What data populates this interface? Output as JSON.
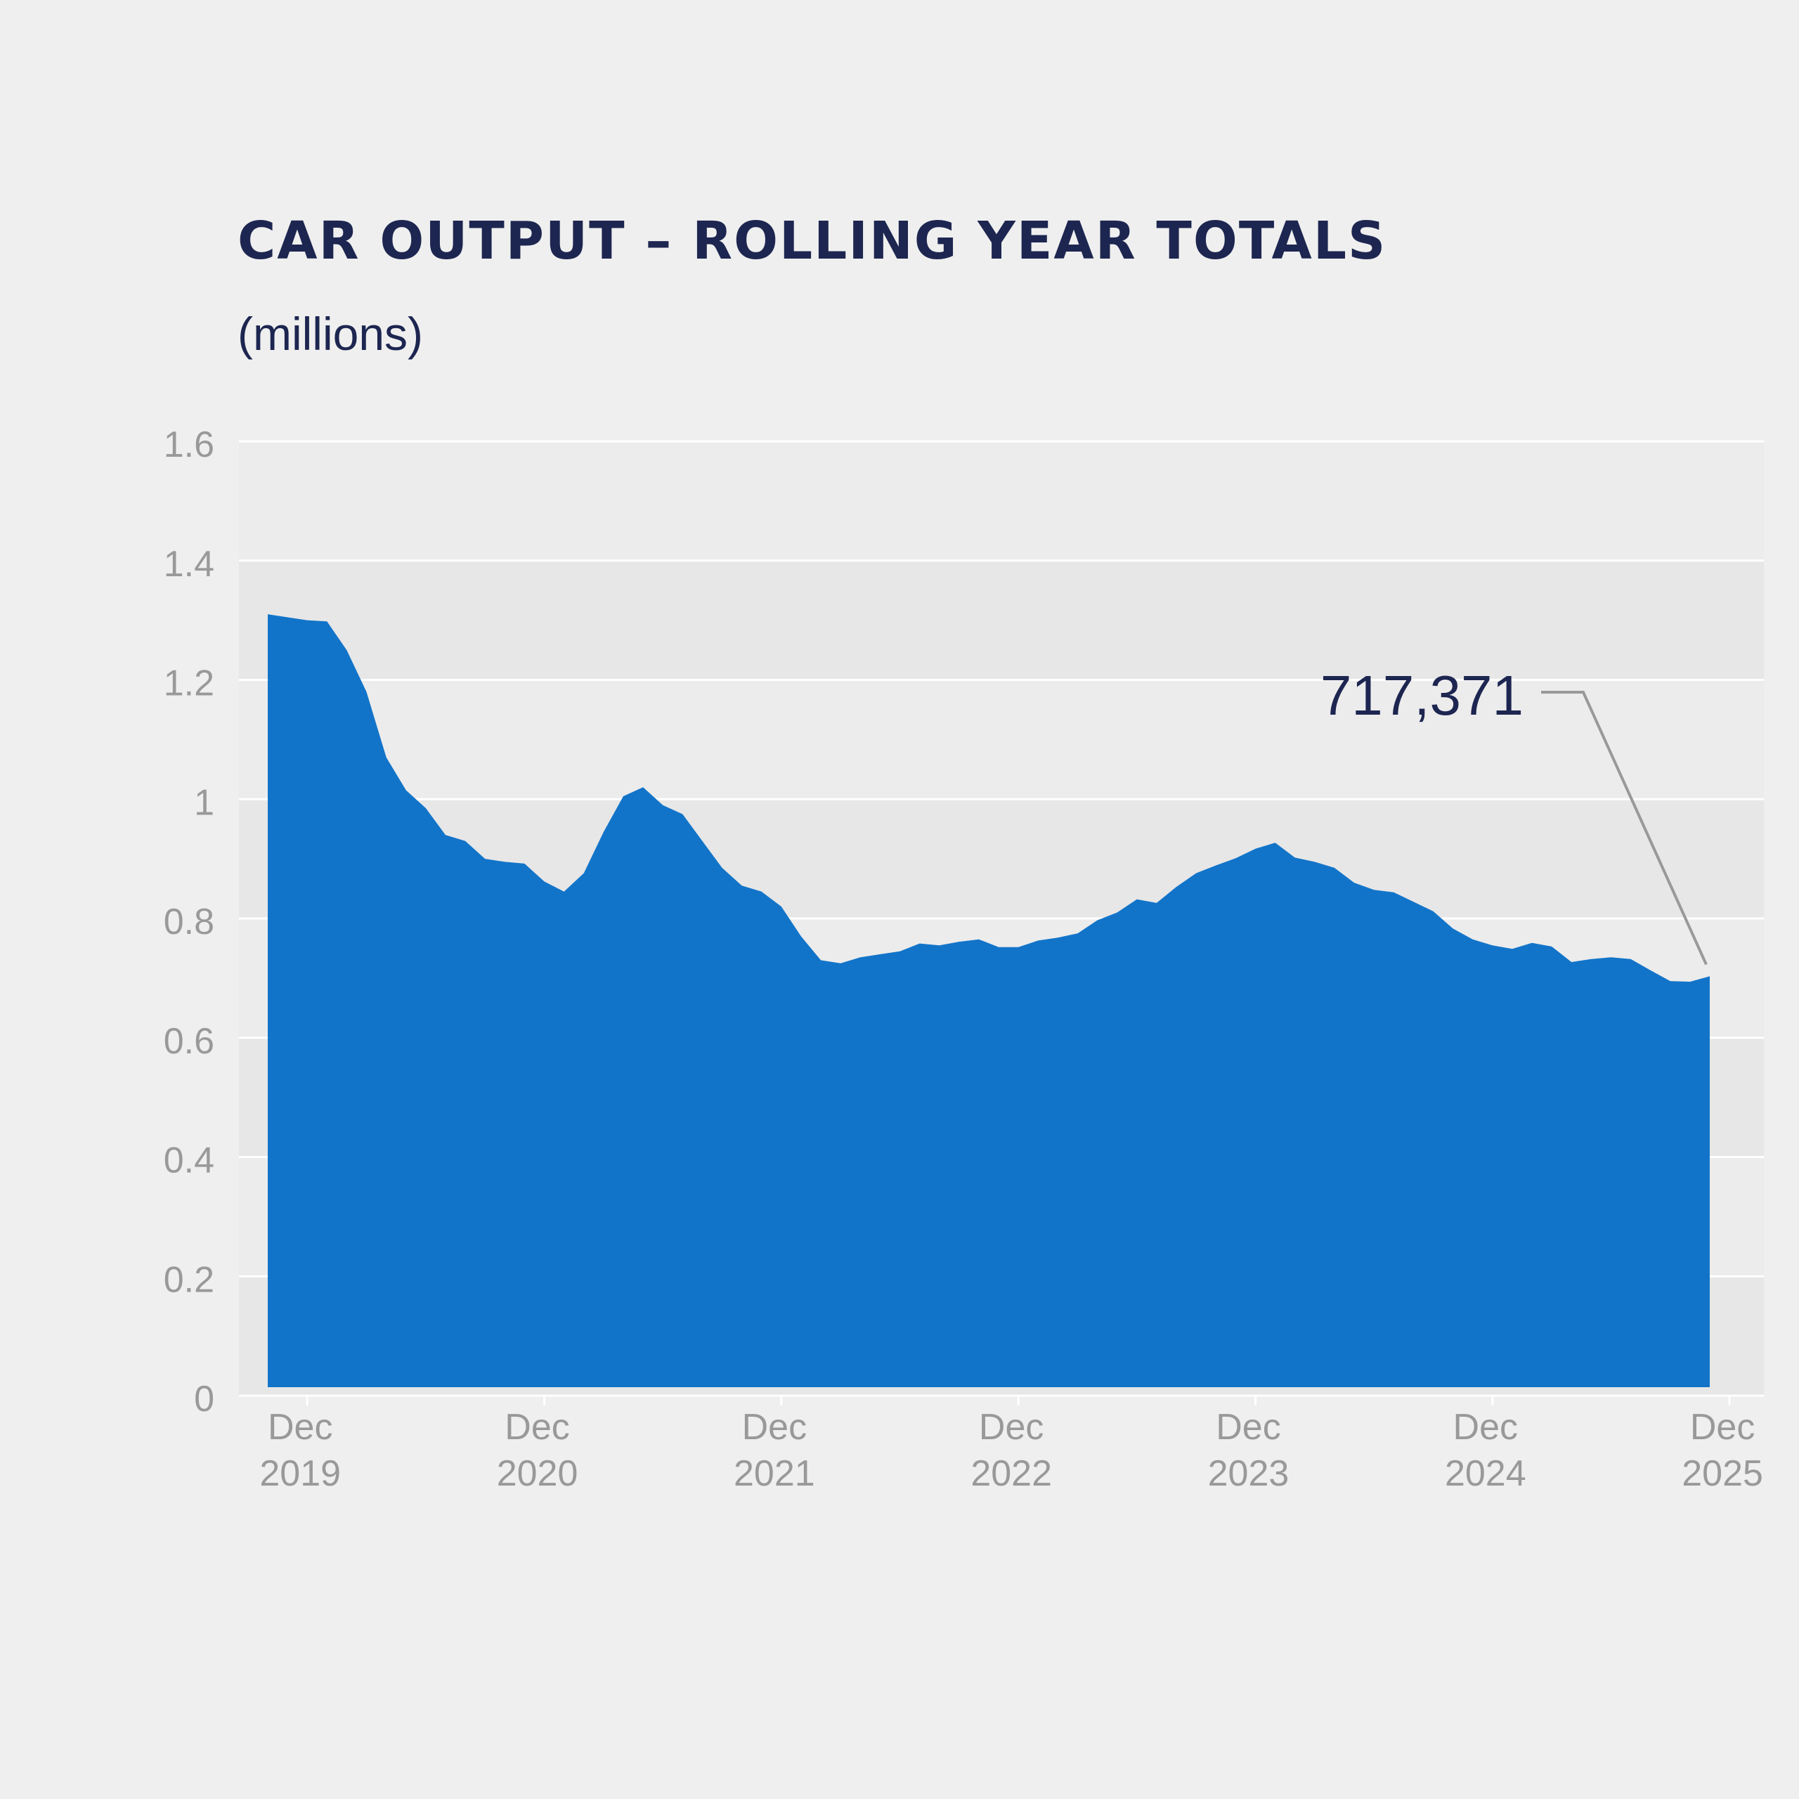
{
  "chart_data": {
    "type": "area",
    "title": "CAR OUTPUT – ROLLING YEAR TOTALS",
    "subtitle": "(millions)",
    "xlabel": "",
    "ylabel": "",
    "ylim": [
      0,
      1.6
    ],
    "yticks": [
      "0",
      "0.2",
      "0.4",
      "0.6",
      "0.8",
      "1",
      "1.2",
      "1.4",
      "1.6"
    ],
    "xticks": [
      {
        "month": "Dec",
        "year": "2019"
      },
      {
        "month": "Dec",
        "year": "2020"
      },
      {
        "month": "Dec",
        "year": "2021"
      },
      {
        "month": "Dec",
        "year": "2022"
      },
      {
        "month": "Dec",
        "year": "2023"
      },
      {
        "month": "Dec",
        "year": "2024"
      },
      {
        "month": "Dec",
        "year": "2025"
      }
    ],
    "xstart": "Oct 2019",
    "grid": true,
    "color": "#1274c9",
    "annotation": {
      "label": "717,371",
      "value": 0.717
    },
    "values": [
      1.31,
      1.305,
      1.3,
      1.298,
      1.25,
      1.18,
      1.07,
      1.015,
      0.985,
      0.94,
      0.93,
      0.9,
      0.895,
      0.892,
      0.862,
      0.845,
      0.876,
      0.945,
      1.005,
      1.02,
      0.99,
      0.975,
      0.93,
      0.885,
      0.855,
      0.845,
      0.82,
      0.77,
      0.73,
      0.725,
      0.735,
      0.74,
      0.745,
      0.758,
      0.755,
      0.761,
      0.765,
      0.752,
      0.752,
      0.763,
      0.768,
      0.775,
      0.797,
      0.81,
      0.832,
      0.826,
      0.853,
      0.876,
      0.889,
      0.901,
      0.917,
      0.927,
      0.902,
      0.895,
      0.885,
      0.86,
      0.848,
      0.844,
      0.828,
      0.812,
      0.783,
      0.765,
      0.755,
      0.749,
      0.759,
      0.753,
      0.727,
      0.732,
      0.735,
      0.732,
      0.713,
      0.695,
      0.694,
      0.703
    ]
  }
}
